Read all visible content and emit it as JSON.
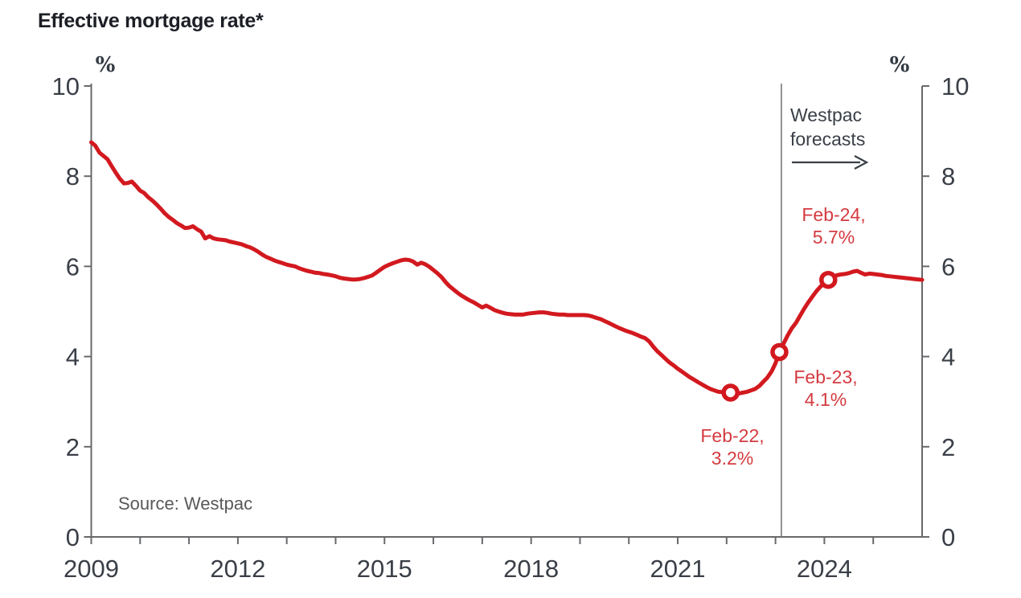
{
  "title": "Effective mortgage rate*",
  "source": "Source: Westpac",
  "forecast_note": {
    "line1": "Westpac",
    "line2": "forecasts"
  },
  "colors": {
    "line_red": "#d2191f",
    "annotation_red": "#d43b40",
    "axis_line": "#68696b",
    "axis_text": "#3a3f47",
    "title_text": "#1c1f26",
    "source_text": "#58595b",
    "forecast_divider": "#77787a",
    "marker_fill": "#ffffff"
  },
  "chart_data": {
    "type": "line",
    "title": "Effective mortgage rate*",
    "unit_label": "%",
    "xlabel": "",
    "ylabel": "%",
    "grid": false,
    "x_range": [
      2009,
      2026
    ],
    "y_range": [
      0,
      10
    ],
    "y_ticks": [
      0,
      2,
      4,
      6,
      8,
      10
    ],
    "x_tick_years": [
      2009,
      2010,
      2011,
      2012,
      2013,
      2014,
      2015,
      2016,
      2017,
      2018,
      2019,
      2020,
      2021,
      2022,
      2023,
      2024,
      2025
    ],
    "x_label_years": [
      2009,
      2012,
      2015,
      2018,
      2021,
      2024
    ],
    "forecast_start_year": 2023.12,
    "series": [
      {
        "name": "Effective mortgage rate (%)",
        "points": [
          [
            2009.0,
            8.75
          ],
          [
            2009.08,
            8.68
          ],
          [
            2009.17,
            8.52
          ],
          [
            2009.25,
            8.45
          ],
          [
            2009.33,
            8.38
          ],
          [
            2009.42,
            8.22
          ],
          [
            2009.5,
            8.08
          ],
          [
            2009.58,
            7.95
          ],
          [
            2009.67,
            7.84
          ],
          [
            2009.75,
            7.85
          ],
          [
            2009.83,
            7.88
          ],
          [
            2009.92,
            7.78
          ],
          [
            2010.0,
            7.68
          ],
          [
            2010.08,
            7.63
          ],
          [
            2010.17,
            7.53
          ],
          [
            2010.25,
            7.46
          ],
          [
            2010.33,
            7.38
          ],
          [
            2010.42,
            7.28
          ],
          [
            2010.5,
            7.18
          ],
          [
            2010.58,
            7.1
          ],
          [
            2010.67,
            7.03
          ],
          [
            2010.75,
            6.96
          ],
          [
            2010.83,
            6.91
          ],
          [
            2010.92,
            6.85
          ],
          [
            2011.0,
            6.86
          ],
          [
            2011.08,
            6.89
          ],
          [
            2011.17,
            6.82
          ],
          [
            2011.25,
            6.77
          ],
          [
            2011.33,
            6.62
          ],
          [
            2011.42,
            6.67
          ],
          [
            2011.5,
            6.62
          ],
          [
            2011.58,
            6.6
          ],
          [
            2011.67,
            6.59
          ],
          [
            2011.75,
            6.58
          ],
          [
            2011.83,
            6.55
          ],
          [
            2011.92,
            6.53
          ],
          [
            2012.0,
            6.51
          ],
          [
            2012.08,
            6.49
          ],
          [
            2012.17,
            6.45
          ],
          [
            2012.25,
            6.42
          ],
          [
            2012.33,
            6.38
          ],
          [
            2012.42,
            6.32
          ],
          [
            2012.5,
            6.26
          ],
          [
            2012.58,
            6.21
          ],
          [
            2012.67,
            6.17
          ],
          [
            2012.75,
            6.13
          ],
          [
            2012.83,
            6.1
          ],
          [
            2012.92,
            6.07
          ],
          [
            2013.0,
            6.04
          ],
          [
            2013.08,
            6.02
          ],
          [
            2013.17,
            6.0
          ],
          [
            2013.25,
            5.96
          ],
          [
            2013.33,
            5.93
          ],
          [
            2013.42,
            5.9
          ],
          [
            2013.5,
            5.88
          ],
          [
            2013.58,
            5.86
          ],
          [
            2013.67,
            5.85
          ],
          [
            2013.75,
            5.83
          ],
          [
            2013.83,
            5.82
          ],
          [
            2013.92,
            5.8
          ],
          [
            2014.0,
            5.78
          ],
          [
            2014.08,
            5.75
          ],
          [
            2014.17,
            5.73
          ],
          [
            2014.25,
            5.72
          ],
          [
            2014.33,
            5.71
          ],
          [
            2014.42,
            5.71
          ],
          [
            2014.5,
            5.72
          ],
          [
            2014.58,
            5.74
          ],
          [
            2014.67,
            5.77
          ],
          [
            2014.75,
            5.8
          ],
          [
            2014.83,
            5.86
          ],
          [
            2014.92,
            5.93
          ],
          [
            2015.0,
            5.99
          ],
          [
            2015.08,
            6.03
          ],
          [
            2015.17,
            6.07
          ],
          [
            2015.25,
            6.1
          ],
          [
            2015.33,
            6.13
          ],
          [
            2015.42,
            6.15
          ],
          [
            2015.5,
            6.14
          ],
          [
            2015.58,
            6.11
          ],
          [
            2015.67,
            6.04
          ],
          [
            2015.75,
            6.08
          ],
          [
            2015.83,
            6.05
          ],
          [
            2015.92,
            5.99
          ],
          [
            2016.0,
            5.92
          ],
          [
            2016.08,
            5.85
          ],
          [
            2016.17,
            5.76
          ],
          [
            2016.25,
            5.65
          ],
          [
            2016.33,
            5.56
          ],
          [
            2016.42,
            5.48
          ],
          [
            2016.5,
            5.41
          ],
          [
            2016.58,
            5.35
          ],
          [
            2016.67,
            5.29
          ],
          [
            2016.75,
            5.24
          ],
          [
            2016.83,
            5.2
          ],
          [
            2016.92,
            5.14
          ],
          [
            2017.0,
            5.09
          ],
          [
            2017.08,
            5.13
          ],
          [
            2017.17,
            5.08
          ],
          [
            2017.25,
            5.03
          ],
          [
            2017.33,
            5.0
          ],
          [
            2017.42,
            4.97
          ],
          [
            2017.5,
            4.95
          ],
          [
            2017.58,
            4.94
          ],
          [
            2017.67,
            4.93
          ],
          [
            2017.75,
            4.93
          ],
          [
            2017.83,
            4.93
          ],
          [
            2017.92,
            4.95
          ],
          [
            2018.0,
            4.96
          ],
          [
            2018.08,
            4.97
          ],
          [
            2018.17,
            4.98
          ],
          [
            2018.25,
            4.98
          ],
          [
            2018.33,
            4.97
          ],
          [
            2018.42,
            4.95
          ],
          [
            2018.5,
            4.94
          ],
          [
            2018.58,
            4.93
          ],
          [
            2018.67,
            4.93
          ],
          [
            2018.75,
            4.92
          ],
          [
            2018.83,
            4.92
          ],
          [
            2018.92,
            4.92
          ],
          [
            2019.0,
            4.92
          ],
          [
            2019.08,
            4.92
          ],
          [
            2019.17,
            4.91
          ],
          [
            2019.25,
            4.89
          ],
          [
            2019.33,
            4.86
          ],
          [
            2019.42,
            4.83
          ],
          [
            2019.5,
            4.79
          ],
          [
            2019.58,
            4.75
          ],
          [
            2019.67,
            4.7
          ],
          [
            2019.75,
            4.66
          ],
          [
            2019.83,
            4.62
          ],
          [
            2019.92,
            4.58
          ],
          [
            2020.0,
            4.55
          ],
          [
            2020.08,
            4.52
          ],
          [
            2020.17,
            4.48
          ],
          [
            2020.25,
            4.44
          ],
          [
            2020.33,
            4.41
          ],
          [
            2020.42,
            4.33
          ],
          [
            2020.5,
            4.22
          ],
          [
            2020.58,
            4.12
          ],
          [
            2020.67,
            4.03
          ],
          [
            2020.75,
            3.95
          ],
          [
            2020.83,
            3.87
          ],
          [
            2020.92,
            3.8
          ],
          [
            2021.0,
            3.73
          ],
          [
            2021.08,
            3.67
          ],
          [
            2021.17,
            3.6
          ],
          [
            2021.25,
            3.54
          ],
          [
            2021.33,
            3.49
          ],
          [
            2021.42,
            3.43
          ],
          [
            2021.5,
            3.38
          ],
          [
            2021.58,
            3.33
          ],
          [
            2021.67,
            3.28
          ],
          [
            2021.75,
            3.25
          ],
          [
            2021.83,
            3.22
          ],
          [
            2021.92,
            3.21
          ],
          [
            2022.0,
            3.2
          ],
          [
            2022.08,
            3.2
          ],
          [
            2022.17,
            3.18
          ],
          [
            2022.25,
            3.18
          ],
          [
            2022.33,
            3.2
          ],
          [
            2022.42,
            3.22
          ],
          [
            2022.5,
            3.25
          ],
          [
            2022.58,
            3.28
          ],
          [
            2022.67,
            3.35
          ],
          [
            2022.75,
            3.44
          ],
          [
            2022.83,
            3.53
          ],
          [
            2022.92,
            3.67
          ],
          [
            2023.0,
            3.85
          ],
          [
            2023.08,
            4.1
          ],
          [
            2023.17,
            4.3
          ],
          [
            2023.25,
            4.47
          ],
          [
            2023.33,
            4.62
          ],
          [
            2023.42,
            4.75
          ],
          [
            2023.5,
            4.9
          ],
          [
            2023.58,
            5.05
          ],
          [
            2023.67,
            5.2
          ],
          [
            2023.75,
            5.32
          ],
          [
            2023.83,
            5.44
          ],
          [
            2023.92,
            5.55
          ],
          [
            2024.0,
            5.63
          ],
          [
            2024.08,
            5.7
          ],
          [
            2024.17,
            5.76
          ],
          [
            2024.25,
            5.8
          ],
          [
            2024.33,
            5.82
          ],
          [
            2024.42,
            5.83
          ],
          [
            2024.5,
            5.85
          ],
          [
            2024.58,
            5.88
          ],
          [
            2024.67,
            5.9
          ],
          [
            2024.75,
            5.86
          ],
          [
            2024.83,
            5.82
          ],
          [
            2024.92,
            5.84
          ],
          [
            2025.0,
            5.83
          ],
          [
            2025.08,
            5.82
          ],
          [
            2025.17,
            5.81
          ],
          [
            2025.25,
            5.79
          ],
          [
            2025.33,
            5.78
          ],
          [
            2025.42,
            5.77
          ],
          [
            2025.5,
            5.76
          ],
          [
            2025.58,
            5.75
          ],
          [
            2025.67,
            5.74
          ],
          [
            2025.75,
            5.73
          ],
          [
            2025.83,
            5.72
          ],
          [
            2025.92,
            5.71
          ],
          [
            2026.0,
            5.7
          ]
        ]
      }
    ],
    "markers": [
      {
        "x": 2022.08,
        "y": 3.2,
        "label_line1": "Feb-22,",
        "label_line2": "3.2%"
      },
      {
        "x": 2023.08,
        "y": 4.1,
        "label_line1": "Feb-23,",
        "label_line2": "4.1%"
      },
      {
        "x": 2024.08,
        "y": 5.7,
        "label_line1": "Feb-24,",
        "label_line2": "5.7%"
      }
    ]
  }
}
